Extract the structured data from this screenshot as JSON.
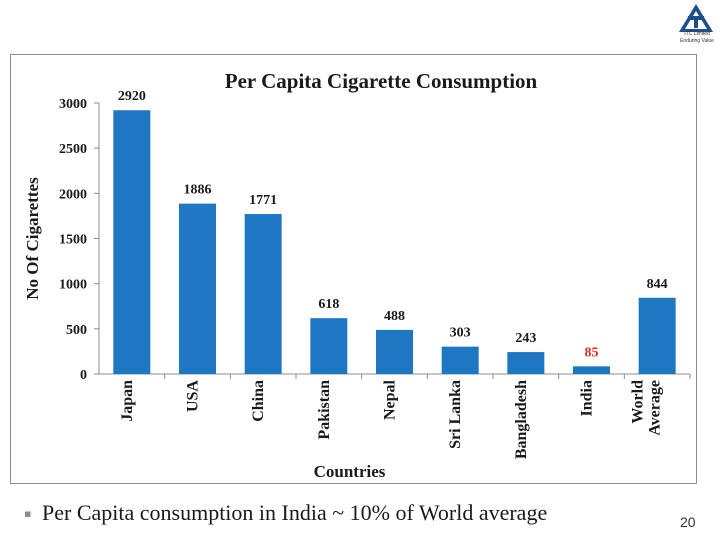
{
  "logo": {
    "icon": "itc-logo-icon",
    "line1": "ITC Limited",
    "line2": "Enduring Value",
    "color": "#1d4f8b"
  },
  "chart_data": {
    "type": "bar",
    "title": "Per Capita Cigarette Consumption",
    "xlabel": "Countries",
    "ylabel": "No Of Cigarettes",
    "categories": [
      "Japan",
      "USA",
      "China",
      "Pakistan",
      "Nepal",
      "Sri Lanka",
      "Bangladesh",
      "India",
      "World Average"
    ],
    "category_lines": [
      [
        "Japan"
      ],
      [
        "USA"
      ],
      [
        "China"
      ],
      [
        "Pakistan"
      ],
      [
        "Nepal"
      ],
      [
        "Sri Lanka"
      ],
      [
        "Bangladesh"
      ],
      [
        "India"
      ],
      [
        "World",
        "Average"
      ]
    ],
    "values": [
      2920,
      1886,
      1771,
      618,
      488,
      303,
      243,
      85,
      844
    ],
    "data_labels": [
      "2920",
      "1886",
      "1771",
      "618",
      "488",
      "303",
      "243",
      "85",
      "844"
    ],
    "highlight_label_index": 7,
    "ylim": [
      0,
      3000
    ],
    "yticks": [
      0,
      500,
      1000,
      1500,
      2000,
      2500,
      3000
    ],
    "bar_color": "#1f77c4",
    "label_color": "#1a1a1a",
    "highlight_color": "#e32a1c",
    "grid": false,
    "legend": "none"
  },
  "footer": {
    "bullet": "▪",
    "note": "Per Capita consumption in India ~ 10% of World average"
  },
  "page_number": "20"
}
